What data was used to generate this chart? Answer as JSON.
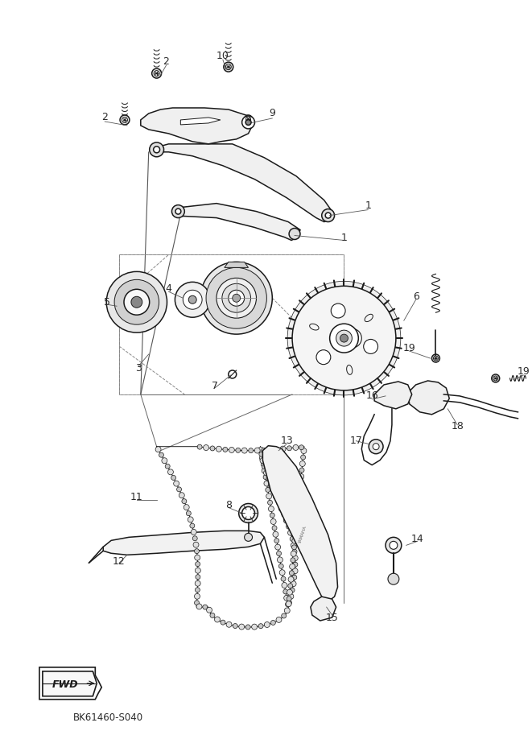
{
  "fig_width": 6.61,
  "fig_height": 9.13,
  "dpi": 100,
  "bg_color": "#ffffff",
  "line_color": "#1a1a1a",
  "label_color": "#2a2a2a",
  "watermark_text": "BK61460-S040",
  "fwd_label": "FWD"
}
